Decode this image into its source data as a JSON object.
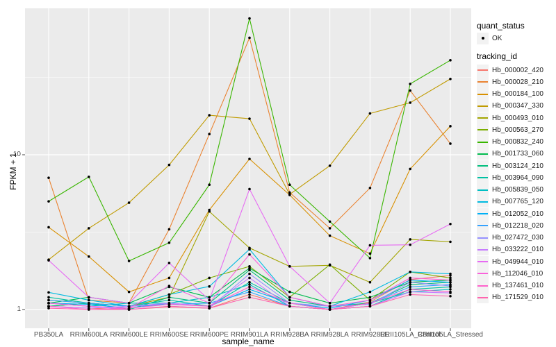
{
  "y_axis": {
    "title": "FPKM + 1",
    "tick_labels": [
      "10",
      "1"
    ]
  },
  "x_axis": {
    "title": "sample_name"
  },
  "legend": {
    "quant_title": "quant_status",
    "quant_item_label": "OK",
    "tracking_title": "tracking_id"
  },
  "colors": {
    "panel_bg": "#EBEBEB",
    "grid": "#FFFFFF",
    "marker": "#000000",
    "tick": "#333333",
    "tick_text": "#4D4D4D"
  },
  "chart_data": {
    "type": "line",
    "title": "",
    "xlabel": "sample_name",
    "ylabel": "FPKM + 1",
    "y_scale": "log10",
    "ylim": [
      0.76,
      90
    ],
    "y_major_ticks": [
      1,
      10
    ],
    "y_minor_gridlines": [
      3.162,
      31.623
    ],
    "grid": true,
    "legend_position": "right",
    "point_marker": "black circle (quant_status OK)",
    "categories": [
      "PB350LA",
      "RRIM600LA",
      "RRIM600LE",
      "RRIM600SE",
      "RRIM600PE",
      "RRIM901LA",
      "RRIM928BA",
      "RRIM928LA",
      "RRIM928LE",
      "RRII105LA_Control",
      "RRII105LA_Stressed"
    ],
    "series": [
      {
        "name": "Hb_000002_420",
        "color": "#F8766D",
        "values": [
          1.05,
          1.02,
          1.0,
          1.04,
          1.02,
          1.25,
          1.05,
          1.0,
          1.12,
          1.56,
          1.66
        ]
      },
      {
        "name": "Hb_000028_210",
        "color": "#EA8331",
        "values": [
          7.1,
          1.15,
          1.1,
          3.3,
          13.6,
          57.0,
          5.7,
          3.35,
          6.1,
          26.0,
          11.8
        ]
      },
      {
        "name": "Hb_000184_100",
        "color": "#D89000",
        "values": [
          3.4,
          2.2,
          1.3,
          1.6,
          4.4,
          9.4,
          5.5,
          3.0,
          2.3,
          8.1,
          15.3
        ]
      },
      {
        "name": "Hb_000347_330",
        "color": "#C09B00",
        "values": [
          2.1,
          3.35,
          4.9,
          8.6,
          18.0,
          17.1,
          5.55,
          8.5,
          18.5,
          21.7,
          30.9
        ]
      },
      {
        "name": "Hb_000493_010",
        "color": "#A3A500",
        "values": [
          1.15,
          1.1,
          1.05,
          1.2,
          4.3,
          2.5,
          1.9,
          1.93,
          1.5,
          2.84,
          2.74
        ]
      },
      {
        "name": "Hb_000563_270",
        "color": "#7CAE00",
        "values": [
          1.05,
          1.1,
          1.05,
          1.25,
          1.6,
          1.9,
          1.2,
          1.95,
          1.15,
          1.75,
          1.6
        ]
      },
      {
        "name": "Hb_000832_240",
        "color": "#39B600",
        "values": [
          5.0,
          7.2,
          2.06,
          2.7,
          6.4,
          76.0,
          6.4,
          3.7,
          2.15,
          28.7,
          40.8
        ]
      },
      {
        "name": "Hb_001733_060",
        "color": "#00BB4E",
        "values": [
          1.1,
          1.2,
          1.1,
          1.4,
          1.2,
          1.85,
          1.3,
          1.1,
          1.2,
          1.5,
          1.55
        ]
      },
      {
        "name": "Hb_003124_210",
        "color": "#00BF7D",
        "values": [
          1.05,
          1.1,
          1.0,
          1.2,
          1.1,
          1.8,
          1.15,
          1.05,
          1.1,
          1.45,
          1.5
        ]
      },
      {
        "name": "Hb_003964_090",
        "color": "#00C1A3",
        "values": [
          1.2,
          1.1,
          1.05,
          1.15,
          1.05,
          1.5,
          1.1,
          1.0,
          1.05,
          1.35,
          1.4
        ]
      },
      {
        "name": "Hb_005839_050",
        "color": "#00BFC4",
        "values": [
          1.1,
          1.05,
          1.1,
          1.1,
          1.2,
          1.45,
          1.05,
          1.0,
          1.1,
          1.3,
          1.35
        ]
      },
      {
        "name": "Hb_007765_120",
        "color": "#00BAE0",
        "values": [
          1.29,
          1.15,
          1.05,
          1.25,
          1.41,
          2.45,
          1.2,
          1.05,
          1.3,
          1.75,
          1.7
        ]
      },
      {
        "name": "Hb_012052_010",
        "color": "#00B0F6",
        "values": [
          1.1,
          1.08,
          1.02,
          1.1,
          1.05,
          1.35,
          1.1,
          1.02,
          1.15,
          1.55,
          1.5
        ]
      },
      {
        "name": "Hb_012218_020",
        "color": "#35A2FF",
        "values": [
          1.15,
          1.1,
          1.05,
          1.08,
          1.1,
          1.3,
          1.05,
          1.0,
          1.1,
          1.4,
          1.45
        ]
      },
      {
        "name": "Hb_027472_030",
        "color": "#9590FF",
        "values": [
          1.1,
          1.05,
          1.0,
          1.05,
          1.02,
          1.7,
          1.1,
          1.05,
          1.08,
          1.5,
          1.42
        ]
      },
      {
        "name": "Hb_033222_010",
        "color": "#C77CFF",
        "values": [
          1.05,
          1.02,
          1.05,
          1.1,
          1.05,
          1.6,
          1.05,
          1.0,
          1.05,
          1.3,
          1.28
        ]
      },
      {
        "name": "Hb_049944_010",
        "color": "#E76BF3",
        "values": [
          2.08,
          1.2,
          1.1,
          2.0,
          1.15,
          6.0,
          1.9,
          1.1,
          2.6,
          2.62,
          3.57
        ]
      },
      {
        "name": "Hb_112046_010",
        "color": "#FA62DB",
        "values": [
          1.1,
          1.05,
          1.02,
          1.42,
          1.1,
          2.27,
          1.2,
          1.05,
          1.15,
          1.6,
          1.55
        ]
      },
      {
        "name": "Hb_137461_010",
        "color": "#FF61CC",
        "values": [
          1.05,
          1.0,
          1.02,
          1.08,
          1.05,
          1.4,
          1.1,
          1.0,
          1.1,
          1.35,
          1.3
        ]
      },
      {
        "name": "Hb_171529_010",
        "color": "#FF65AE",
        "values": [
          1.02,
          1.0,
          1.0,
          1.05,
          1.02,
          1.2,
          1.05,
          1.0,
          1.05,
          1.25,
          1.22
        ]
      }
    ]
  }
}
